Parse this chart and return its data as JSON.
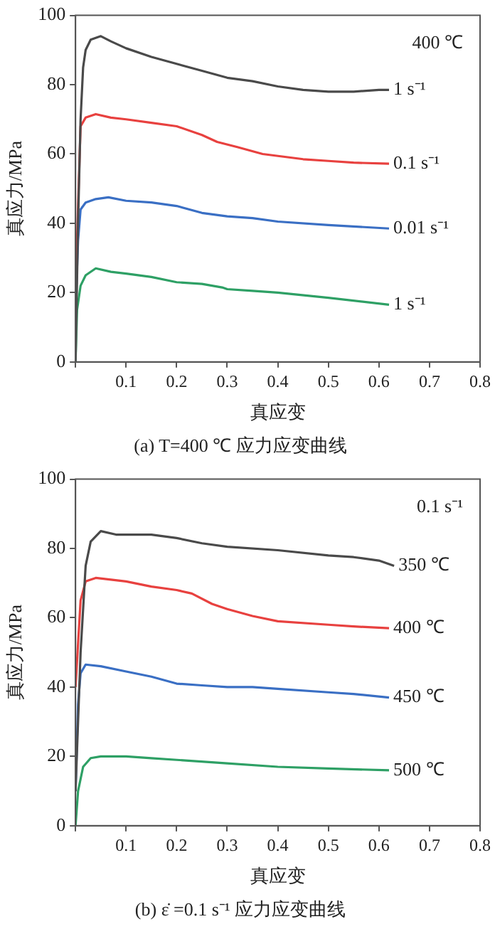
{
  "chart_data": [
    {
      "type": "line",
      "title": "(a) T=400 ℃ 应力应变曲线",
      "xlabel": "真应变",
      "ylabel": "真应力/MPa",
      "xlim": [
        0,
        0.8
      ],
      "xticks": [
        {
          "value": 0,
          "label": null
        },
        0.1,
        0.2,
        0.3,
        0.4,
        0.5,
        0.6,
        0.7,
        0.8
      ],
      "ylim": [
        0,
        100
      ],
      "yticks": [
        0,
        20,
        40,
        60,
        80,
        100
      ],
      "grid": false,
      "legend": false,
      "marker": "none",
      "line_style": "solid",
      "annotations": [
        "400 ℃"
      ],
      "series": [
        {
          "name": "1 s⁻¹",
          "color": "#4a4a4a",
          "x": [
            0,
            0.005,
            0.01,
            0.015,
            0.02,
            0.03,
            0.05,
            0.07,
            0.1,
            0.15,
            0.2,
            0.25,
            0.3,
            0.35,
            0.4,
            0.45,
            0.5,
            0.55,
            0.6,
            0.62
          ],
          "values": [
            0,
            40,
            70,
            85,
            90,
            93,
            94,
            92.5,
            90.5,
            88,
            86,
            84,
            82,
            81,
            79.5,
            78.5,
            78,
            78,
            78.5,
            78.5
          ]
        },
        {
          "name": "0.1 s⁻¹",
          "color": "#e8413f",
          "x": [
            0,
            0.005,
            0.01,
            0.02,
            0.04,
            0.07,
            0.1,
            0.15,
            0.2,
            0.25,
            0.28,
            0.32,
            0.37,
            0.45,
            0.5,
            0.55,
            0.62
          ],
          "values": [
            20,
            45,
            68,
            70.5,
            71.5,
            70.5,
            70,
            69,
            68,
            65.5,
            63.5,
            62,
            60,
            58.5,
            58,
            57.5,
            57.2
          ]
        },
        {
          "name": "0.01 s⁻¹",
          "color": "#3a6fc4",
          "x": [
            0,
            0.005,
            0.01,
            0.02,
            0.04,
            0.065,
            0.1,
            0.15,
            0.2,
            0.25,
            0.3,
            0.35,
            0.4,
            0.5,
            0.62
          ],
          "values": [
            15,
            35,
            44,
            46,
            47,
            47.5,
            46.5,
            46,
            45,
            43,
            42,
            41.5,
            40.5,
            39.5,
            38.5
          ]
        },
        {
          "name": "1 s⁻¹",
          "color": "#2ea065",
          "x": [
            0,
            0.003,
            0.01,
            0.02,
            0.04,
            0.07,
            0.1,
            0.15,
            0.2,
            0.25,
            0.29,
            0.3,
            0.35,
            0.4,
            0.5,
            0.62
          ],
          "values": [
            0,
            15,
            22,
            25,
            27,
            26,
            25.5,
            24.5,
            23,
            22.5,
            21.5,
            21,
            20.5,
            20,
            18.5,
            16.5
          ]
        }
      ]
    },
    {
      "type": "line",
      "title": "(b) ε̇ =0.1 s⁻¹ 应力应变曲线",
      "xlabel": "真应变",
      "ylabel": "真应力/MPa",
      "xlim": [
        0,
        0.8
      ],
      "xticks": [
        {
          "value": 0,
          "label": null
        },
        0.1,
        0.2,
        0.3,
        0.4,
        0.5,
        0.6,
        0.7,
        0.8
      ],
      "ylim": [
        0,
        100
      ],
      "yticks": [
        0,
        20,
        40,
        60,
        80,
        100
      ],
      "grid": false,
      "legend": false,
      "marker": "none",
      "line_style": "solid",
      "annotations": [
        "0.1 s⁻¹"
      ],
      "series": [
        {
          "name": "350 ℃",
          "color": "#4a4a4a",
          "x": [
            0,
            0.01,
            0.02,
            0.03,
            0.05,
            0.08,
            0.15,
            0.2,
            0.25,
            0.3,
            0.4,
            0.5,
            0.55,
            0.6,
            0.63
          ],
          "values": [
            10,
            50,
            75,
            82,
            85,
            84,
            84,
            83,
            81.5,
            80.5,
            79.5,
            78,
            77.5,
            76.5,
            75
          ]
        },
        {
          "name": "400 ℃",
          "color": "#e8413f",
          "x": [
            0,
            0.01,
            0.02,
            0.04,
            0.1,
            0.15,
            0.2,
            0.23,
            0.27,
            0.3,
            0.35,
            0.4,
            0.5,
            0.55,
            0.62
          ],
          "values": [
            40,
            65,
            70.5,
            71.5,
            70.5,
            69,
            68,
            67,
            64,
            62.5,
            60.5,
            59,
            58,
            57.5,
            57
          ]
        },
        {
          "name": "450 ℃",
          "color": "#3a6fc4",
          "x": [
            0,
            0.005,
            0.01,
            0.02,
            0.05,
            0.1,
            0.15,
            0.2,
            0.25,
            0.3,
            0.35,
            0.4,
            0.5,
            0.55,
            0.62
          ],
          "values": [
            10,
            35,
            44,
            46.5,
            46,
            44.5,
            43,
            41,
            40.5,
            40,
            40,
            39.5,
            38.5,
            38,
            37
          ]
        },
        {
          "name": "500 ℃",
          "color": "#2ea065",
          "x": [
            0,
            0.005,
            0.015,
            0.03,
            0.05,
            0.1,
            0.15,
            0.2,
            0.3,
            0.4,
            0.5,
            0.62
          ],
          "values": [
            0,
            10,
            17,
            19.5,
            20,
            20,
            19.5,
            19,
            18,
            17,
            16.5,
            16
          ]
        }
      ]
    }
  ]
}
